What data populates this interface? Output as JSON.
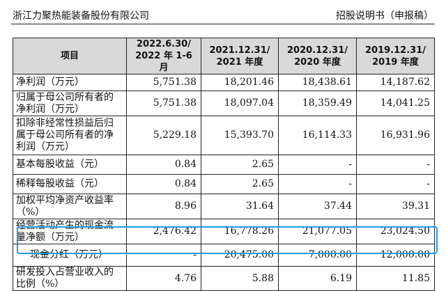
{
  "header": {
    "company": "浙江力聚热能装备股份有限公司",
    "doc_title": "招股说明书（申报稿）"
  },
  "table": {
    "columns": [
      "项目",
      "2022.6.30/\n2022 年 1-6 月",
      "2021.12.31/\n2021 年度",
      "2020.12.31/\n2020 年度",
      "2019.12.31/\n2019 年度"
    ],
    "rows": [
      {
        "label": "净利润（万元）",
        "values": [
          "5,751.38",
          "18,201.46",
          "18,438.61",
          "14,187.62"
        ]
      },
      {
        "label": "归属于母公司所有者的净利润（万元）",
        "values": [
          "5,751.38",
          "18,097.04",
          "18,359.49",
          "14,041.25"
        ]
      },
      {
        "label": "扣除非经常性损益后归属于母公司所有者的净利润（万元）",
        "values": [
          "5,229.18",
          "15,393.70",
          "16,114.33",
          "16,931.96"
        ]
      },
      {
        "label": "基本每股收益（元）",
        "values": [
          "0.84",
          "2.65",
          "-",
          "-"
        ]
      },
      {
        "label": "稀释每股收益（元）",
        "values": [
          "0.84",
          "2.65",
          "-",
          "-"
        ]
      },
      {
        "label": "加权平均净资产收益率（%）",
        "values": [
          "8.96",
          "31.64",
          "37.44",
          "39.31"
        ]
      },
      {
        "label": "经营活动产生的现金流量净额（万元）",
        "values": [
          "2,476.42",
          "16,778.26",
          "21,077.05",
          "23,024.50"
        ]
      },
      {
        "label": "现金分红（万元）",
        "values": [
          "-",
          "20,475.00",
          "7,000.00",
          "12,000.00"
        ]
      },
      {
        "label": "研发投入占营业收入的比例（%）",
        "values": [
          "4.76",
          "5.88",
          "6.19",
          "11.85"
        ]
      }
    ]
  },
  "colors": {
    "header_bg": "#d9d9d9",
    "highlight": "#1e9be8"
  }
}
